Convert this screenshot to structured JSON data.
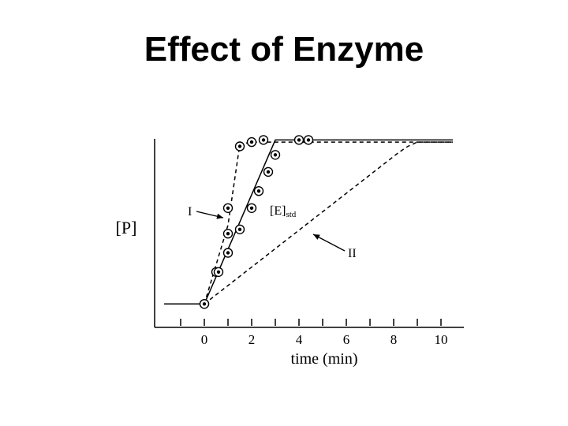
{
  "slide": {
    "title": "Effect of Enzyme"
  },
  "chart_data": {
    "type": "line",
    "title": "Effect of Enzyme",
    "xlabel": "time (min)",
    "ylabel": "[P]",
    "xlim": [
      -2,
      10.5
    ],
    "ylim": [
      0,
      1.0
    ],
    "xticks_labeled": [
      0,
      2,
      4,
      6,
      8,
      10
    ],
    "yticks": [],
    "grid": false,
    "legend": "none",
    "series": [
      {
        "name": "I",
        "style": "dashed",
        "points": [
          [
            0,
            0.11
          ],
          [
            1.0,
            0.48
          ],
          [
            1.5,
            0.86
          ],
          [
            2.0,
            0.87
          ],
          [
            3.0,
            0.87
          ],
          [
            10.5,
            0.87
          ]
        ],
        "markers": [
          [
            0,
            0.11
          ],
          [
            0.5,
            0.26
          ],
          [
            1.0,
            0.44
          ],
          [
            1.0,
            0.56
          ],
          [
            1.5,
            0.85
          ],
          [
            2.0,
            0.87
          ],
          [
            2.5,
            0.88
          ]
        ]
      },
      {
        "name": "[E]std",
        "style": "solid",
        "points": [
          [
            -1.7,
            0.11
          ],
          [
            0,
            0.11
          ],
          [
            3.0,
            0.88
          ],
          [
            10.5,
            0.88
          ]
        ],
        "markers": [
          [
            0,
            0.11
          ],
          [
            0.6,
            0.26
          ],
          [
            1.0,
            0.35
          ],
          [
            1.5,
            0.46
          ],
          [
            2.0,
            0.56
          ],
          [
            2.3,
            0.64
          ],
          [
            2.7,
            0.73
          ],
          [
            3.0,
            0.81
          ],
          [
            4.0,
            0.88
          ],
          [
            4.4,
            0.88
          ]
        ]
      },
      {
        "name": "II",
        "style": "dashed",
        "points": [
          [
            0,
            0.11
          ],
          [
            8.2,
            0.82
          ],
          [
            8.6,
            0.85
          ],
          [
            9.0,
            0.87
          ],
          [
            10.5,
            0.87
          ]
        ],
        "markers": []
      }
    ],
    "annotations": [
      {
        "text": "I",
        "target_series": "I"
      },
      {
        "text": "[E]",
        "subscript": "std",
        "target_series": "[E]std"
      },
      {
        "text": "II",
        "target_series": "II"
      }
    ]
  }
}
